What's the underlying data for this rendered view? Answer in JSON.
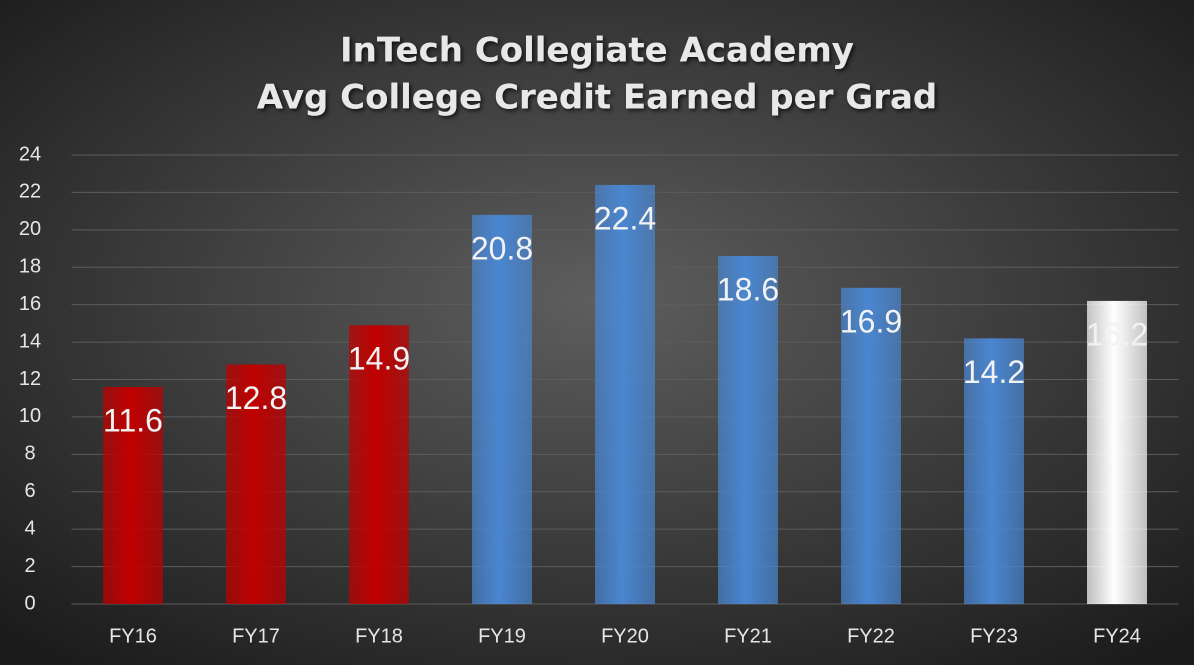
{
  "chart_data": {
    "type": "bar",
    "title": "InTech Collegiate Academy",
    "subtitle": "Avg College Credit Earned per Grad",
    "categories": [
      "FY16",
      "FY17",
      "FY18",
      "FY19",
      "FY20",
      "FY21",
      "FY22",
      "FY23",
      "FY24"
    ],
    "values": [
      11.6,
      12.8,
      14.9,
      20.8,
      22.4,
      18.6,
      16.9,
      14.2,
      16.2
    ],
    "colors": [
      "#c00000",
      "#c00000",
      "#c00000",
      "#4a86d0",
      "#4a86d0",
      "#4a86d0",
      "#4a86d0",
      "#4a86d0",
      "#ffffff"
    ],
    "ylim": [
      0,
      24
    ],
    "yticks": [
      0,
      2,
      4,
      6,
      8,
      10,
      12,
      14,
      16,
      18,
      20,
      22,
      24
    ],
    "grid": true
  }
}
